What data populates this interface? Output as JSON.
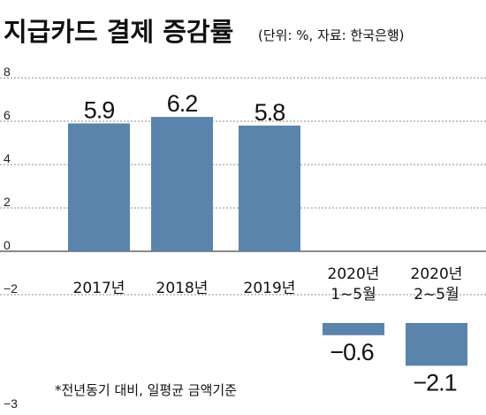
{
  "title": "지급카드 결제 증감률",
  "subtitle": "(단위: %, 자료: 한국은행)",
  "footnote": "*전년동기 대비, 일평균 금액기준",
  "colors": {
    "bar": "#5b84ad",
    "grid": "#8c8c8c",
    "axis": "#444444"
  },
  "chart_data": {
    "type": "bar",
    "title": "지급카드 결제 증감률",
    "subtitle": "(단위: %, 자료: 한국은행)",
    "categories": [
      [
        "2017년"
      ],
      [
        "2018년"
      ],
      [
        "2019년"
      ],
      [
        "2020년",
        "1~5월"
      ],
      [
        "2020년",
        "2~5월"
      ]
    ],
    "values": [
      5.9,
      6.2,
      5.8,
      -0.6,
      -2.1
    ],
    "value_labels": [
      "5.9",
      "6.2",
      "5.8",
      "−0.6",
      "−2.1"
    ],
    "y_ticks": [
      8,
      6,
      4,
      2,
      0,
      -2,
      -3
    ],
    "y_tick_labels": [
      "8",
      "6",
      "4",
      "2",
      "0",
      "−2",
      "−3"
    ],
    "ylim": [
      -3,
      8
    ],
    "grid": true,
    "xlabel": "",
    "ylabel": ""
  }
}
